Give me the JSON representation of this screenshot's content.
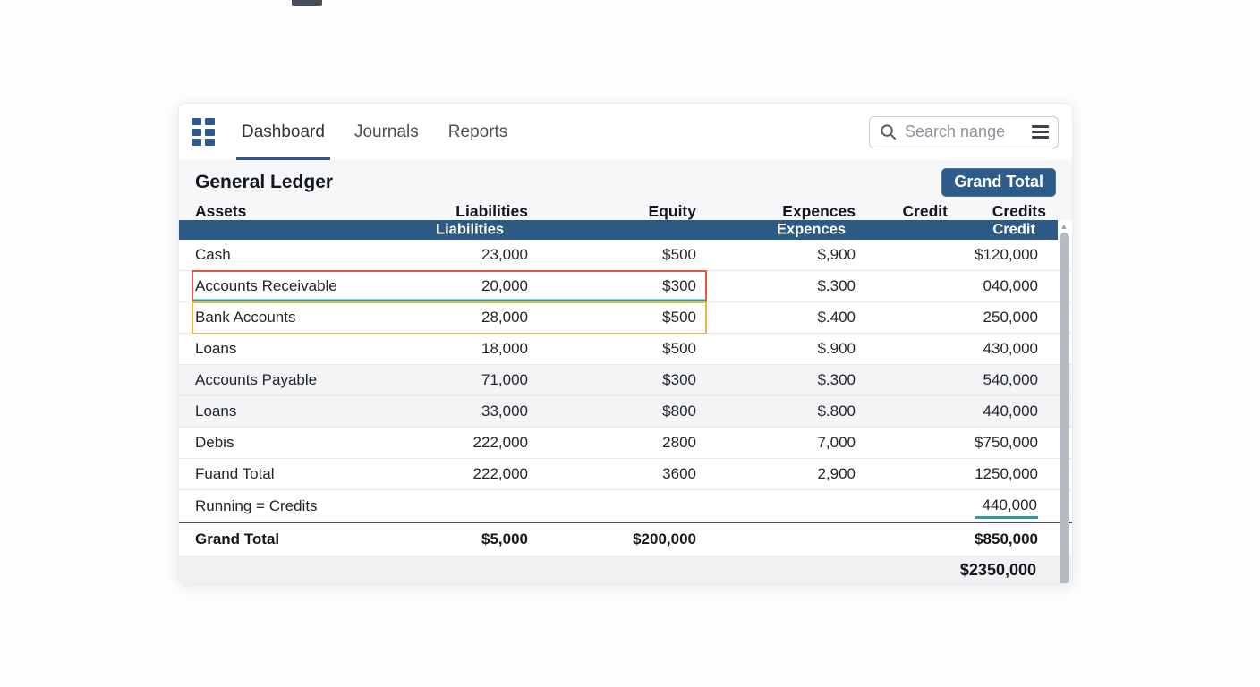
{
  "nav": {
    "tabs": [
      {
        "label": "Dashboard",
        "active": true
      },
      {
        "label": "Journals",
        "active": false
      },
      {
        "label": "Reports",
        "active": false
      }
    ],
    "search": {
      "placeholder": "Search nange"
    }
  },
  "header": {
    "title": "General Ledger",
    "grand_total_button": "Grand Total"
  },
  "table": {
    "columns": [
      "Assets",
      "Liabilities",
      "Equity",
      "Expences",
      "Credit",
      "Credits"
    ],
    "band": [
      "Liabilities",
      "Expences",
      "Credit"
    ],
    "rows": [
      {
        "name": "Cash",
        "liabilities": "23,000",
        "equity": "$500",
        "expences": "$,900",
        "credit": "",
        "credits": "$120,000",
        "highlight": "",
        "shade": false,
        "credits_underline": false,
        "running": false
      },
      {
        "name": "Accounts Receivable",
        "liabilities": "20,000",
        "equity": "$300",
        "expences": "$.300",
        "credit": "",
        "credits": "040,000",
        "highlight": "red",
        "shade": false,
        "credits_underline": false,
        "running": false
      },
      {
        "name": "Bank Accounts",
        "liabilities": "28,000",
        "equity": "$500",
        "expences": "$.400",
        "credit": "",
        "credits": "250,000",
        "highlight": "yellow",
        "shade": false,
        "credits_underline": false,
        "running": false
      },
      {
        "name": "Loans",
        "liabilities": "18,000",
        "equity": "$500",
        "expences": "$.900",
        "credit": "",
        "credits": "430,000",
        "highlight": "",
        "shade": false,
        "credits_underline": false,
        "running": false
      },
      {
        "name": "Accounts Payable",
        "liabilities": "71,000",
        "equity": "$300",
        "expences": "$.300",
        "credit": "",
        "credits": "540,000",
        "highlight": "",
        "shade": true,
        "credits_underline": false,
        "running": false
      },
      {
        "name": "Loans",
        "liabilities": "33,000",
        "equity": "$800",
        "expences": "$.800",
        "credit": "",
        "credits": "440,000",
        "highlight": "",
        "shade": true,
        "credits_underline": false,
        "running": false
      },
      {
        "name": "Debis",
        "liabilities": "222,000",
        "equity": "2800",
        "expences": "7,000",
        "credit": "",
        "credits": "$750,000",
        "highlight": "",
        "shade": false,
        "credits_underline": false,
        "running": false
      },
      {
        "name": "Fuand Total",
        "liabilities": "222,000",
        "equity": "3600",
        "expences": "2,900",
        "credit": "",
        "credits": "1250,000",
        "highlight": "",
        "shade": false,
        "credits_underline": false,
        "running": false
      },
      {
        "name": "Running = Credits",
        "liabilities": "",
        "equity": "",
        "expences": "",
        "credit": "",
        "credits": "440,000",
        "highlight": "",
        "shade": false,
        "credits_underline": true,
        "running": true
      }
    ],
    "grand_total": {
      "name": "Grand Total",
      "liabilities": "$5,000",
      "equity": "$200,000",
      "expences": "",
      "credit": "",
      "credits": "$850,000"
    },
    "footer_total": "$2350,000"
  },
  "colors": {
    "accent_blue": "#2d5a84",
    "highlight_red": "#da5c49",
    "highlight_yellow": "#e7b843",
    "underline_teal": "#2a9d9c"
  }
}
